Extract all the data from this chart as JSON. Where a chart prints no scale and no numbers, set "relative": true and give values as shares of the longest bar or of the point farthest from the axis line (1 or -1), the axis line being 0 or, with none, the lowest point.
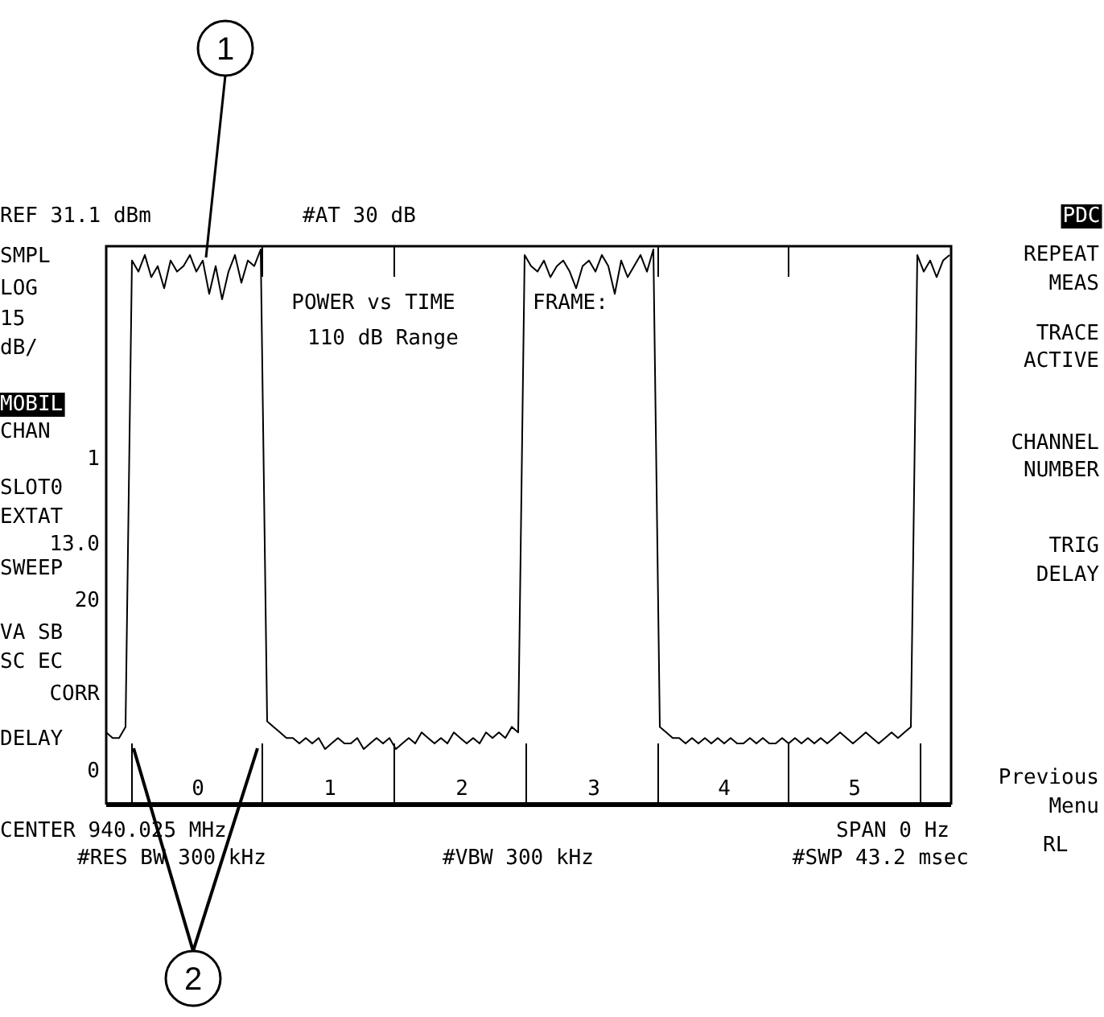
{
  "chart_data": {
    "type": "line",
    "relative": true,
    "title": "POWER vs TIME",
    "subtitle": "110 dB Range",
    "color": "#000000",
    "categories": [
      null,
      null,
      null,
      null,
      null,
      null,
      null,
      null,
      null,
      null,
      null,
      null,
      null,
      null,
      null,
      null,
      null,
      null,
      null,
      null,
      null,
      null,
      null,
      null,
      null,
      null,
      null,
      null,
      null,
      null,
      null,
      null,
      null,
      null,
      null,
      null,
      null,
      null,
      null,
      null,
      null,
      null,
      null,
      null,
      null,
      null,
      null,
      null,
      null,
      null,
      null,
      null,
      null,
      null,
      null,
      null,
      null,
      null,
      null,
      null,
      null,
      null,
      null,
      null,
      null,
      null,
      null,
      null,
      null,
      null,
      null,
      null,
      null,
      null,
      null,
      null,
      null,
      null,
      null,
      null,
      null,
      null,
      null,
      null,
      null,
      null,
      null,
      null,
      null,
      null,
      null,
      null,
      null,
      null,
      null,
      null,
      null,
      null,
      null,
      null,
      null,
      null,
      null,
      null,
      null,
      null,
      null,
      null,
      null,
      null,
      null,
      null,
      null,
      null,
      null,
      null,
      null,
      null,
      null,
      null,
      null,
      null,
      null,
      null,
      null,
      null,
      null,
      null,
      null,
      null,
      null,
      null
    ],
    "values": [
      0.13,
      0.12,
      0.12,
      0.14,
      0.98,
      0.96,
      0.99,
      0.95,
      0.97,
      0.93,
      0.98,
      0.96,
      0.97,
      0.99,
      0.96,
      0.98,
      0.92,
      0.97,
      0.91,
      0.96,
      0.99,
      0.94,
      0.98,
      0.97,
      1.0,
      0.15,
      0.14,
      0.13,
      0.12,
      0.12,
      0.11,
      0.12,
      0.11,
      0.12,
      0.1,
      0.11,
      0.12,
      0.11,
      0.11,
      0.12,
      0.1,
      0.11,
      0.12,
      0.11,
      0.12,
      0.1,
      0.11,
      0.12,
      0.11,
      0.13,
      0.12,
      0.11,
      0.12,
      0.11,
      0.13,
      0.12,
      0.11,
      0.12,
      0.11,
      0.13,
      0.12,
      0.13,
      0.12,
      0.14,
      0.13,
      0.99,
      0.97,
      0.96,
      0.98,
      0.95,
      0.97,
      0.98,
      0.96,
      0.93,
      0.97,
      0.98,
      0.96,
      0.99,
      0.97,
      0.92,
      0.98,
      0.95,
      0.97,
      0.99,
      0.96,
      1.0,
      0.14,
      0.13,
      0.12,
      0.12,
      0.11,
      0.12,
      0.11,
      0.12,
      0.11,
      0.12,
      0.11,
      0.12,
      0.11,
      0.11,
      0.12,
      0.11,
      0.12,
      0.11,
      0.11,
      0.12,
      0.11,
      0.12,
      0.11,
      0.12,
      0.11,
      0.12,
      0.11,
      0.12,
      0.13,
      0.12,
      0.11,
      0.12,
      0.13,
      0.12,
      0.11,
      0.12,
      0.13,
      0.12,
      0.13,
      0.14,
      0.99,
      0.96,
      0.98,
      0.95,
      0.98,
      0.99
    ],
    "annotations": [
      "REF 31.1 dBm",
      "#AT 30 dB",
      "SMPL",
      "LOG",
      "15",
      "dB/",
      "MOBIL",
      "CHAN",
      "1",
      "SLOT0",
      "EXTAT",
      "13.0",
      "SWEEP",
      "20",
      "VA SB",
      "SC EC",
      "CORR",
      "DELAY",
      "0",
      "PDC",
      "REPEAT",
      "MEAS",
      "TRACE",
      "ACTIVE",
      "CHANNEL",
      "NUMBER",
      "TRIG",
      "DELAY",
      "Previous",
      "Menu",
      "RL",
      "CENTER 940.025 MHz",
      "SPAN 0 Hz",
      "#RES BW 300 kHz",
      "#VBW 300 kHz",
      "#SWP 43.2 msec",
      "FRAME:",
      "0",
      "1",
      "2",
      "3",
      "4",
      "5",
      "1",
      "2"
    ]
  }
}
